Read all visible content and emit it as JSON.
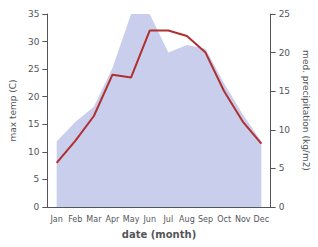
{
  "chart_data": {
    "type": "line",
    "categories": [
      "Jan",
      "Feb",
      "Mar",
      "Apr",
      "May",
      "Jun",
      "Jul",
      "Aug",
      "Sep",
      "Oct",
      "Nov",
      "Dec"
    ],
    "series": [
      {
        "type": "area",
        "axis": "y2",
        "color": "#aab4e0",
        "values": [
          8.5,
          11.0,
          13.0,
          18.0,
          25.0,
          25.0,
          20.0,
          21.0,
          20.5,
          16.0,
          12.0,
          8.5
        ]
      },
      {
        "type": "line",
        "color": "#b03030",
        "values": [
          8.0,
          12.0,
          16.5,
          24.0,
          23.5,
          32.0,
          32.0,
          31.0,
          28.0,
          21.0,
          15.5,
          11.5
        ]
      }
    ],
    "xlabel": "date (month)",
    "ylabel": "max temp (C)",
    "y2label": "med. precipitation (kg/m2)",
    "ylim": [
      0,
      35
    ],
    "yticks": [
      0,
      5,
      10,
      15,
      20,
      25,
      30,
      35
    ],
    "y2lim": [
      0,
      25
    ],
    "y2ticks": [
      0,
      5,
      10,
      15,
      20,
      25
    ],
    "grid": false
  }
}
